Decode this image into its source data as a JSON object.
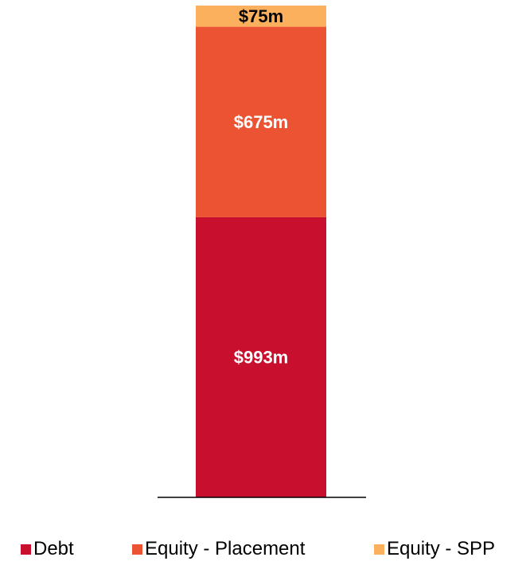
{
  "chart_data": {
    "type": "bar",
    "stacked": true,
    "categories": [
      ""
    ],
    "series": [
      {
        "name": "Debt",
        "values": [
          993
        ],
        "label": "$993m",
        "color": "#C8102E",
        "label_color": "#ffffff"
      },
      {
        "name": "Equity - Placement",
        "values": [
          675
        ],
        "label": "$675m",
        "color": "#EB5333",
        "label_color": "#ffffff"
      },
      {
        "name": "Equity - SPP",
        "values": [
          75
        ],
        "label": "$75m",
        "color": "#FBB05E",
        "label_color": "#000000"
      }
    ],
    "title": "",
    "xlabel": "",
    "ylabel": "",
    "ylim": [
      0,
      1743
    ],
    "grid": false,
    "legend_position": "bottom"
  }
}
